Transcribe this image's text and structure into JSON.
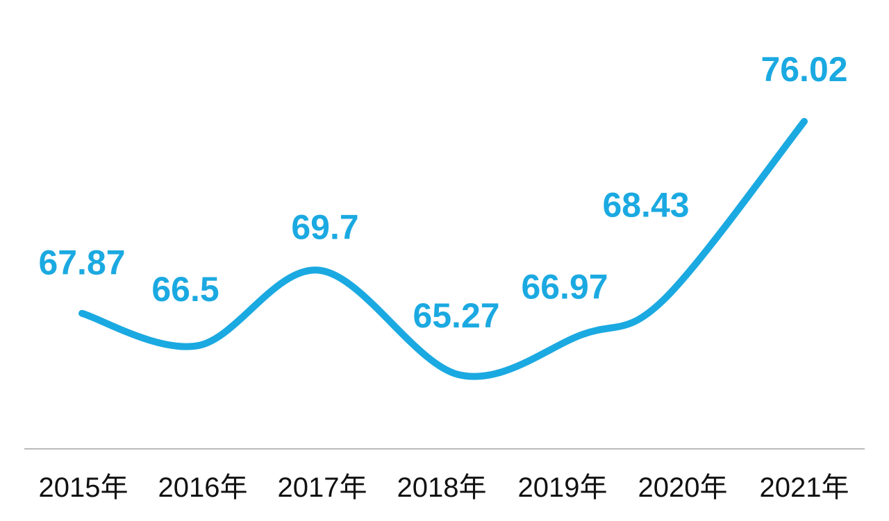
{
  "chart_data": {
    "type": "line",
    "categories": [
      "2015年",
      "2016年",
      "2017年",
      "2018年",
      "2019年",
      "2020年",
      "2021年"
    ],
    "series": [
      {
        "values": [
          67.87,
          66.5,
          69.7,
          65.27,
          66.97,
          68.43,
          76.02
        ],
        "labels": [
          "67.87",
          "66.5",
          "69.7",
          "65.27",
          "66.97",
          "68.43",
          "76.02"
        ]
      }
    ],
    "title": "",
    "xlabel": "",
    "ylabel": "",
    "grid": false,
    "line_color": "#1BA9E1",
    "axis_color": "#BBBBBB",
    "tick_text_color": "#111111"
  }
}
